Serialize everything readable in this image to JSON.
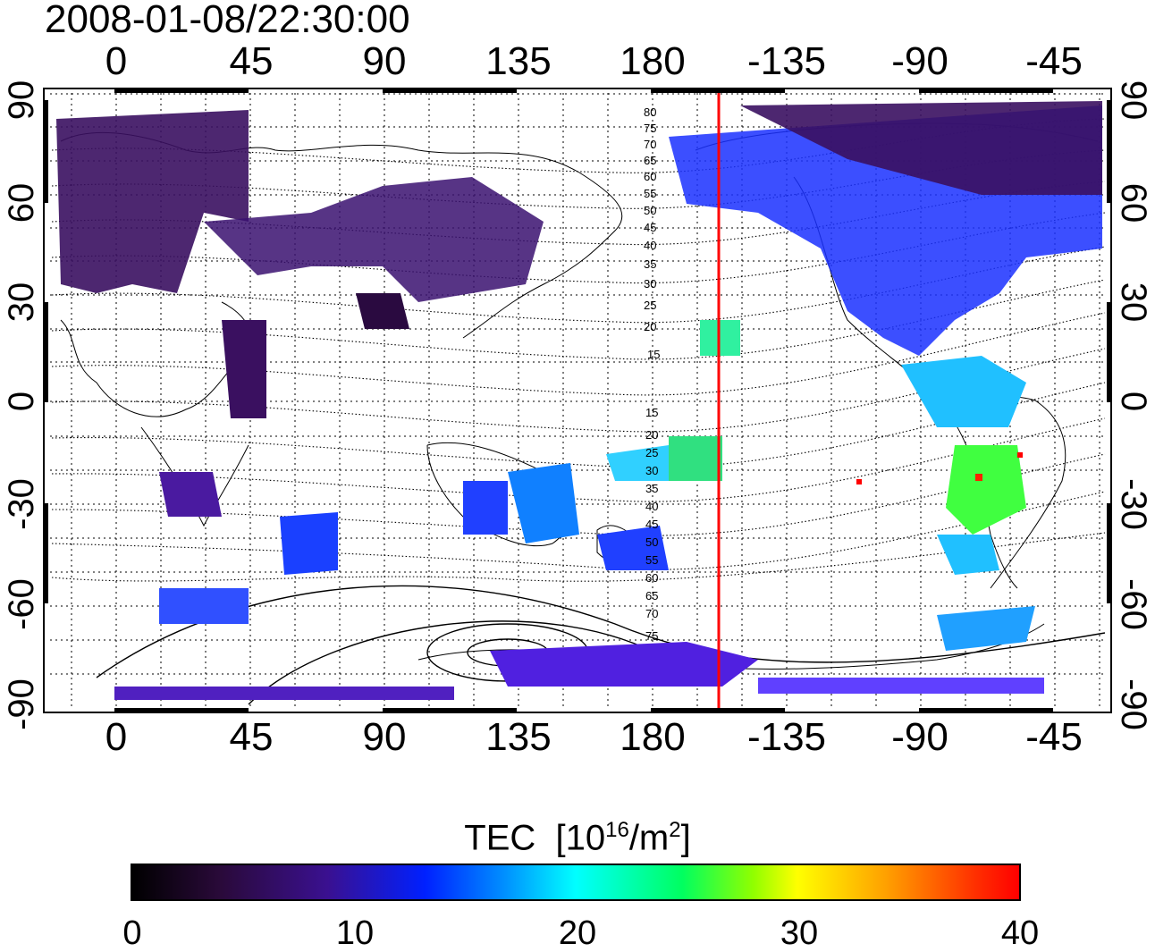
{
  "timestamp": "2008-01-08/22:30:00",
  "longitude_ticks": [
    "0",
    "45",
    "90",
    "135",
    "180",
    "-135",
    "-90",
    "-45"
  ],
  "latitude_ticks": [
    "90",
    "60",
    "30",
    "0",
    "-30",
    "-60",
    "-90"
  ],
  "contour_labels_north": [
    "80",
    "75",
    "70",
    "65",
    "60",
    "55",
    "50",
    "45",
    "40",
    "35",
    "30",
    "25",
    "20",
    "15"
  ],
  "contour_labels_south": [
    "15",
    "20",
    "25",
    "30",
    "35",
    "40",
    "45",
    "50",
    "55",
    "60",
    "65",
    "70",
    "75"
  ],
  "colorbar": {
    "title": "TEC",
    "unit_base": "[10",
    "unit_exp": "16",
    "unit_mid": "/m",
    "unit_exp2": "2",
    "unit_end": "]",
    "tick_labels": [
      "0",
      "10",
      "20",
      "30",
      "40"
    ],
    "range": [
      0,
      40
    ],
    "colors": [
      "#000000",
      "#3a1090",
      "#0020ff",
      "#00ffff",
      "#00ff60",
      "#ffff00",
      "#ffa000",
      "#ff0000"
    ]
  },
  "marker_line": {
    "color": "#ff0000",
    "longitude": -157
  }
}
